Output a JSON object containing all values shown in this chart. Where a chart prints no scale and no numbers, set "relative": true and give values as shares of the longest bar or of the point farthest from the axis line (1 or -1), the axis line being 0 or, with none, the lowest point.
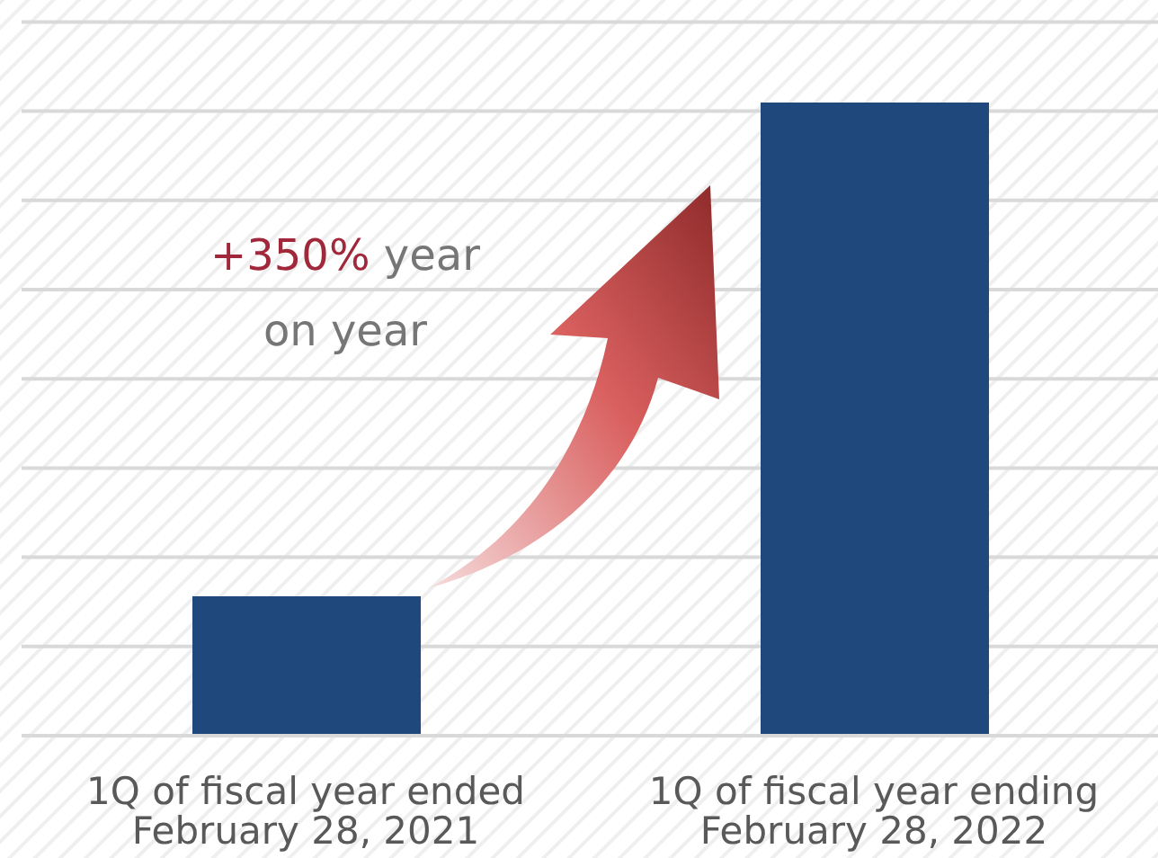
{
  "chart_data": {
    "type": "bar",
    "relative": true,
    "categories": [
      "1Q of fiscal year ended February 28, 2021",
      "1Q of fiscal year ending February 28, 2022"
    ],
    "values": [
      0.22,
      1
    ],
    "color": "#1f497d",
    "grid": "y",
    "annotations": [
      "+350% year on year"
    ]
  }
}
